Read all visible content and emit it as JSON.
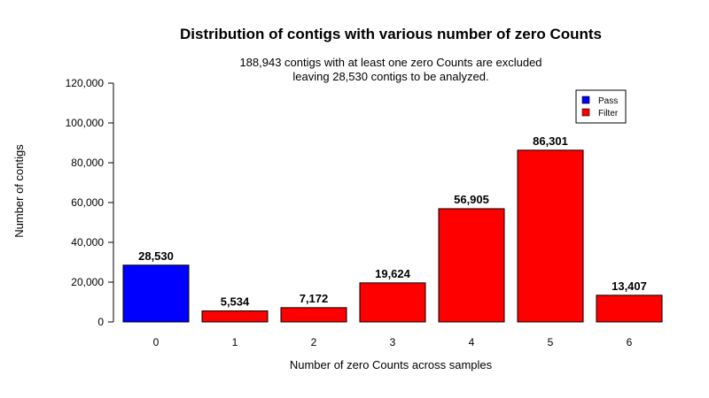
{
  "chart_data": {
    "type": "bar",
    "title": "Distribution of contigs with various number of zero Counts",
    "subtitle_lines": [
      "188,943 contigs with at least one zero Counts are excluded",
      "leaving 28,530 contigs to be analyzed."
    ],
    "xlabel": "Number of zero Counts across samples",
    "ylabel": "Number of contigs",
    "categories": [
      "0",
      "1",
      "2",
      "3",
      "4",
      "5",
      "6"
    ],
    "values": [
      28530,
      5534,
      7172,
      19624,
      56905,
      86301,
      13407
    ],
    "value_labels": [
      "28,530",
      "5,534",
      "7,172",
      "19,624",
      "56,905",
      "86,301",
      "13,407"
    ],
    "bar_groups": [
      "Pass",
      "Filter",
      "Filter",
      "Filter",
      "Filter",
      "Filter",
      "Filter"
    ],
    "ylim": [
      0,
      120000
    ],
    "yticks": [
      0,
      20000,
      40000,
      60000,
      80000,
      100000,
      120000
    ],
    "ytick_labels": [
      "0",
      "20,000",
      "40,000",
      "60,000",
      "80,000",
      "100,000",
      "120,000"
    ],
    "legend": {
      "placement": "top-right",
      "entries": [
        {
          "label": "Pass",
          "color": "#0000ff"
        },
        {
          "label": "Filter",
          "color": "#ff0000"
        }
      ]
    },
    "grid": false
  }
}
